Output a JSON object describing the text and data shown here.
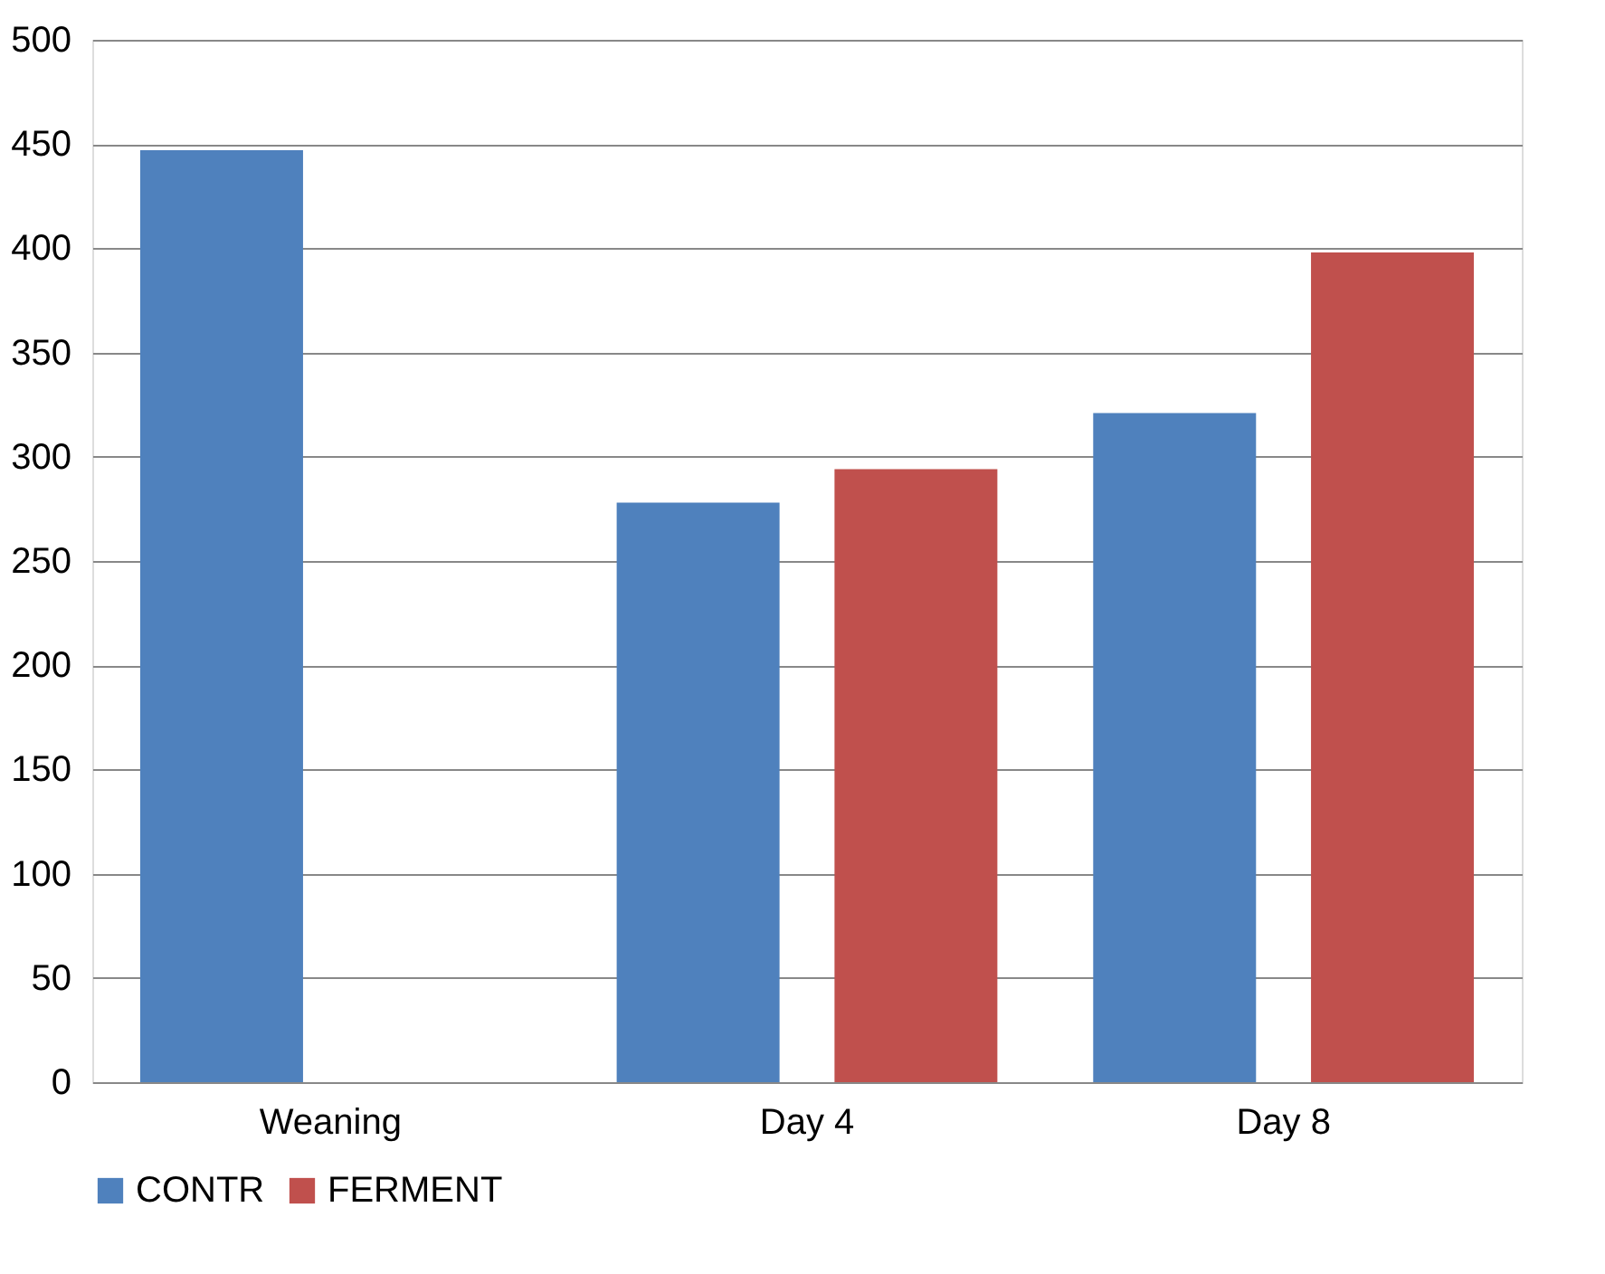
{
  "chart_data": {
    "type": "bar",
    "categories": [
      "Weaning",
      "Day 4",
      "Day 8"
    ],
    "series": [
      {
        "name": "CONTR",
        "color": "#4f81bd",
        "values": [
          447,
          278,
          321
        ]
      },
      {
        "name": "FERMENT",
        "color": "#c0504d",
        "values": [
          null,
          294,
          398
        ]
      }
    ],
    "ylim": [
      0,
      500
    ],
    "yticks": [
      0,
      50,
      100,
      150,
      200,
      250,
      300,
      350,
      400,
      450,
      500
    ],
    "grid": "y",
    "legend": "bottom"
  }
}
